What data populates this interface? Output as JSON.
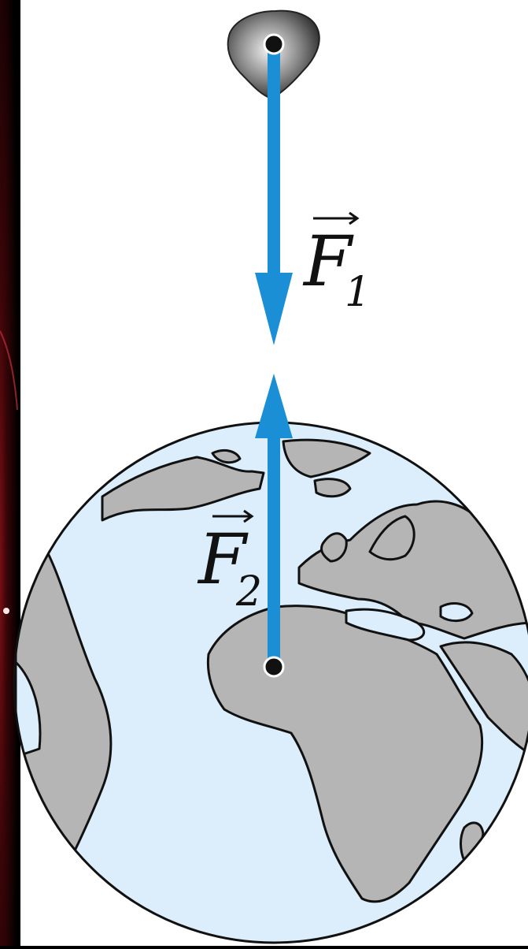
{
  "diagram": {
    "labels": {
      "force_1": {
        "symbol": "F",
        "subscript": "1"
      },
      "force_2": {
        "symbol": "F",
        "subscript": "2"
      }
    },
    "nodes": [
      {
        "name": "asteroid",
        "label": ""
      },
      {
        "name": "earth",
        "label": ""
      }
    ],
    "vectors": [
      {
        "name": "force-1",
        "from": "asteroid",
        "toward": "earth"
      },
      {
        "name": "force-2",
        "from": "earth",
        "toward": "asteroid"
      }
    ],
    "colors": {
      "background": "#000000",
      "panel": "#ffffff",
      "arrow": "#1a8fd6",
      "ocean": "#dceefb",
      "land": "#b5b5b5",
      "outline": "#111111"
    }
  }
}
